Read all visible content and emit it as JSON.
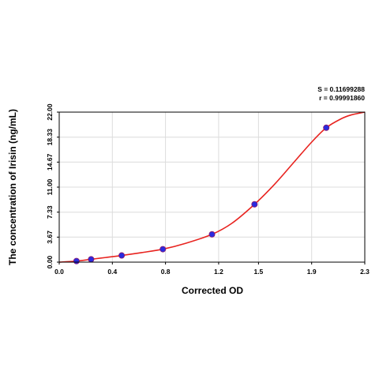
{
  "chart_data": {
    "type": "scatter",
    "xlabel": "Corrected OD",
    "ylabel": "The concentration of Irisin (ng/mL)",
    "xlim": [
      0.0,
      2.3
    ],
    "ylim": [
      0.0,
      22.0
    ],
    "x_ticks": [
      "0.0",
      "0.4",
      "0.8",
      "1.2",
      "1.5",
      "1.9",
      "2.3"
    ],
    "y_ticks": [
      "0.00",
      "3.67",
      "7.33",
      "11.00",
      "14.67",
      "18.33",
      "22.00"
    ],
    "grid": true,
    "stats": {
      "s_label": "S = 0.11699288",
      "r_label": "r = 0.99991860"
    },
    "points": [
      {
        "x": 0.13,
        "y": 0.16
      },
      {
        "x": 0.24,
        "y": 0.42
      },
      {
        "x": 0.47,
        "y": 0.98
      },
      {
        "x": 0.78,
        "y": 1.9
      },
      {
        "x": 1.15,
        "y": 4.08
      },
      {
        "x": 1.47,
        "y": 8.48
      },
      {
        "x": 2.01,
        "y": 19.71
      }
    ],
    "curve": [
      {
        "x": 0.0,
        "y": 0.0
      },
      {
        "x": 0.13,
        "y": 0.16
      },
      {
        "x": 0.24,
        "y": 0.42
      },
      {
        "x": 0.35,
        "y": 0.68
      },
      {
        "x": 0.47,
        "y": 0.98
      },
      {
        "x": 0.62,
        "y": 1.4
      },
      {
        "x": 0.78,
        "y": 1.9
      },
      {
        "x": 0.95,
        "y": 2.75
      },
      {
        "x": 1.15,
        "y": 4.08
      },
      {
        "x": 1.3,
        "y": 5.7
      },
      {
        "x": 1.47,
        "y": 8.48
      },
      {
        "x": 1.62,
        "y": 11.4
      },
      {
        "x": 1.76,
        "y": 14.5
      },
      {
        "x": 1.9,
        "y": 17.6
      },
      {
        "x": 2.01,
        "y": 19.71
      },
      {
        "x": 2.12,
        "y": 21.0
      },
      {
        "x": 2.2,
        "y": 21.6
      },
      {
        "x": 2.3,
        "y": 22.0
      }
    ],
    "colors": {
      "curve": "#e8231f",
      "point_fill": "#2a2adf",
      "point_edge": "#8a1b6e",
      "grid": "#dcdcdc"
    }
  }
}
